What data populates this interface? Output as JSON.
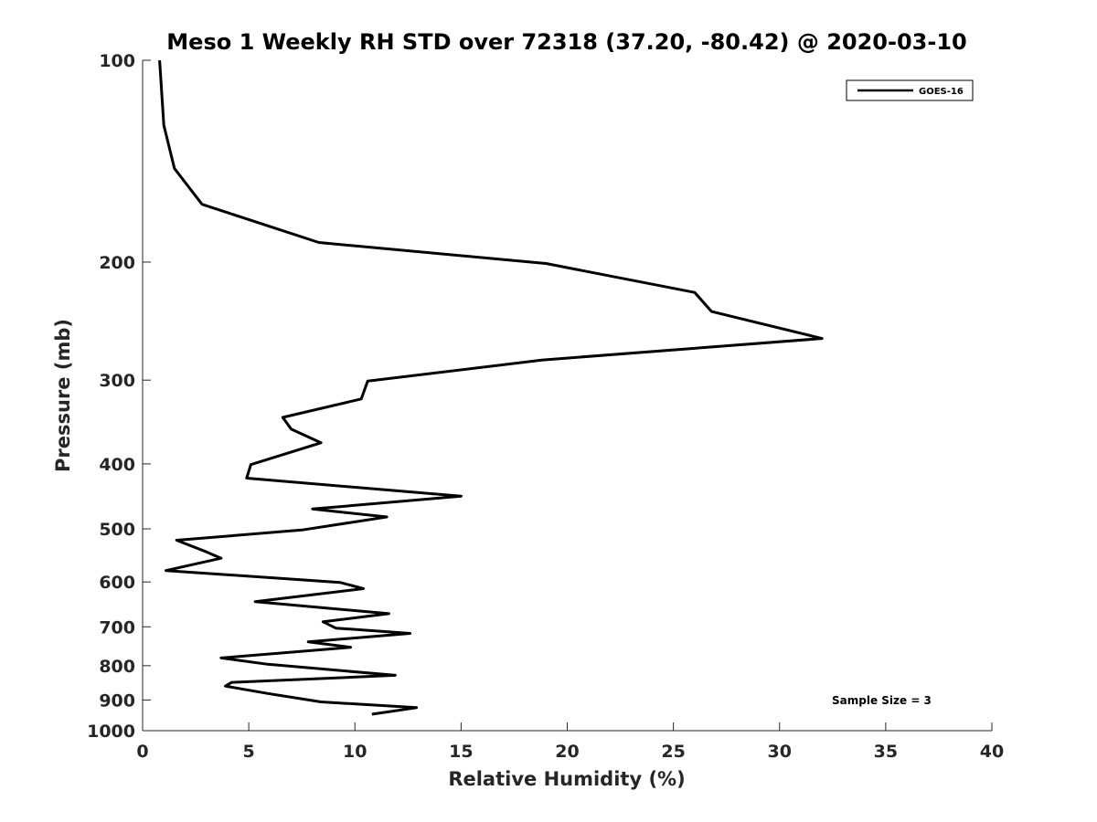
{
  "chart_data": {
    "type": "line",
    "title": "Meso 1 Weekly RH STD over 72318 (37.20, -80.42) @ 2020-03-10",
    "xlabel": "Relative Humidity (%)",
    "ylabel": "Pressure (mb)",
    "xlim": [
      0,
      40
    ],
    "ylim": [
      100,
      1000
    ],
    "y_scale": "log",
    "y_inverted": true,
    "x_ticks": [
      0,
      5,
      10,
      15,
      20,
      25,
      30,
      35,
      40
    ],
    "y_ticks": [
      100,
      200,
      300,
      400,
      500,
      600,
      700,
      800,
      900,
      1000
    ],
    "grid": false,
    "legend_placement": "top-right",
    "annotation": "Sample Size = 3",
    "series": [
      {
        "name": "GOES-16",
        "color": "#000000",
        "points": [
          [
            0.8,
            100
          ],
          [
            1.0,
            125
          ],
          [
            1.5,
            145
          ],
          [
            2.8,
            164
          ],
          [
            8.3,
            187
          ],
          [
            19.0,
            201
          ],
          [
            26.0,
            222
          ],
          [
            26.8,
            237
          ],
          [
            32.0,
            260
          ],
          [
            18.8,
            280
          ],
          [
            10.6,
            301
          ],
          [
            10.3,
            320
          ],
          [
            6.6,
            341
          ],
          [
            7.0,
            355
          ],
          [
            8.4,
            372
          ],
          [
            5.1,
            401
          ],
          [
            4.9,
            420
          ],
          [
            15.0,
            447
          ],
          [
            8.0,
            467
          ],
          [
            11.5,
            480
          ],
          [
            7.5,
            502
          ],
          [
            1.6,
            520
          ],
          [
            3.0,
            541
          ],
          [
            3.7,
            553
          ],
          [
            1.1,
            577
          ],
          [
            9.3,
            601
          ],
          [
            10.4,
            614
          ],
          [
            5.3,
            642
          ],
          [
            11.6,
            669
          ],
          [
            8.5,
            688
          ],
          [
            9.1,
            703
          ],
          [
            12.6,
            716
          ],
          [
            7.8,
            737
          ],
          [
            9.8,
            751
          ],
          [
            3.7,
            779
          ],
          [
            5.9,
            796
          ],
          [
            11.9,
            827
          ],
          [
            4.2,
            847
          ],
          [
            3.9,
            858
          ],
          [
            5.9,
            880
          ],
          [
            8.4,
            906
          ],
          [
            12.9,
            924
          ],
          [
            10.8,
            945
          ]
        ]
      }
    ]
  }
}
